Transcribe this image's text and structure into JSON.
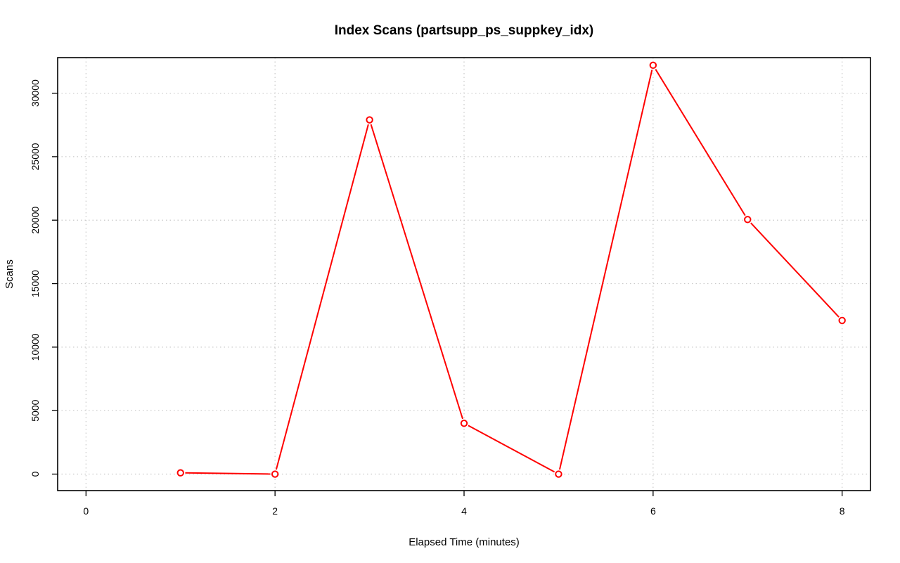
{
  "chart_data": {
    "type": "line",
    "title": "Index Scans (partsupp_ps_suppkey_idx)",
    "xlabel": "Elapsed Time (minutes)",
    "ylabel": "Scans",
    "xlim": [
      -0.3,
      8.3
    ],
    "ylim": [
      -1300,
      32800
    ],
    "x_ticks": [
      0,
      2,
      4,
      6,
      8
    ],
    "y_ticks": [
      0,
      5000,
      10000,
      15000,
      20000,
      25000,
      30000
    ],
    "grid": true,
    "series": [
      {
        "color": "#ff0000",
        "marker": "open-circle",
        "x": [
          1,
          2,
          3,
          4,
          5,
          6,
          7,
          8
        ],
        "y": [
          100,
          0,
          27900,
          4000,
          0,
          32200,
          20050,
          12100
        ]
      }
    ]
  }
}
